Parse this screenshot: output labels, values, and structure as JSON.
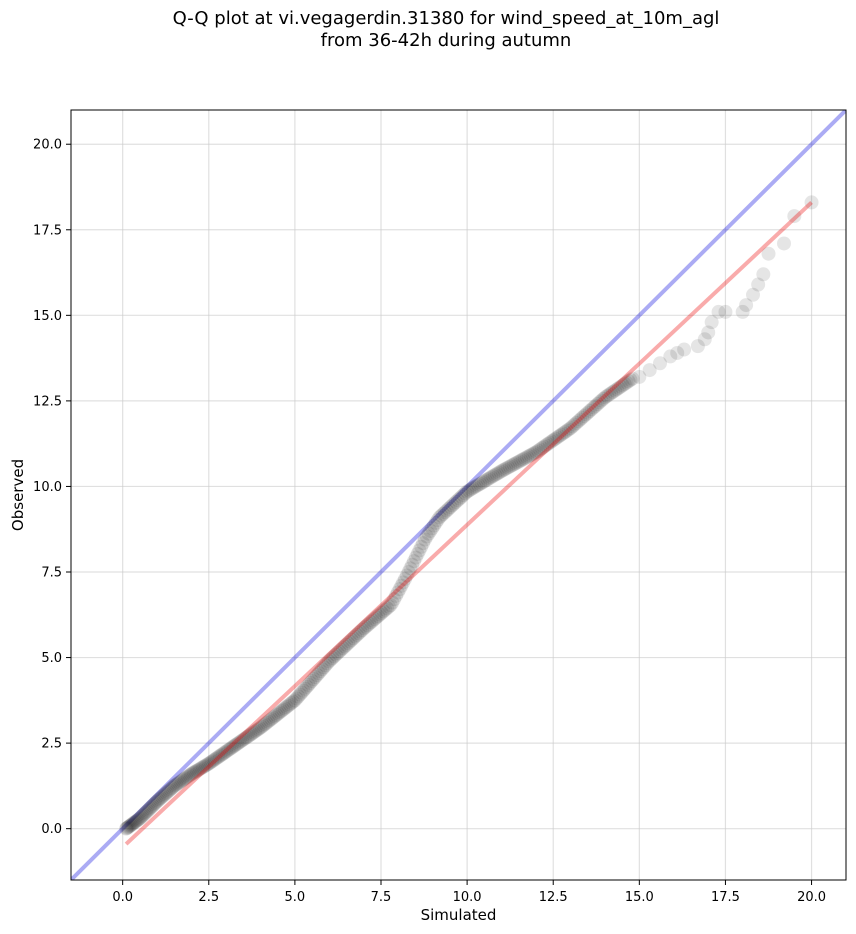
{
  "chart_data": {
    "type": "scatter",
    "title_line1": "Q-Q plot at vi.vegagerdin.31380 for wind_speed_at_10m_agl",
    "title_line2": "from 36-42h during autumn",
    "xlabel": "Simulated",
    "ylabel": "Observed",
    "xlim": [
      -1.5,
      21
    ],
    "ylim": [
      -1.5,
      21
    ],
    "xticks": [
      0.0,
      2.5,
      5.0,
      7.5,
      10.0,
      12.5,
      15.0,
      17.5,
      20.0
    ],
    "yticks": [
      0.0,
      2.5,
      5.0,
      7.5,
      10.0,
      12.5,
      15.0,
      17.5,
      20.0
    ],
    "xtick_labels": [
      "0.0",
      "2.5",
      "5.0",
      "7.5",
      "10.0",
      "12.5",
      "15.0",
      "17.5",
      "20.0"
    ],
    "ytick_labels": [
      "0.0",
      "2.5",
      "5.0",
      "7.5",
      "10.0",
      "12.5",
      "15.0",
      "17.5",
      "20.0"
    ],
    "grid": true,
    "colors": {
      "points": "#000000",
      "identity_line": "#0000dd",
      "fit_line": "#ee0000",
      "grid": "#cccccc"
    },
    "identity_line": {
      "x": [
        -1.5,
        21
      ],
      "y": [
        -1.5,
        21
      ]
    },
    "fit_line": {
      "x": [
        0.1,
        20.0
      ],
      "y": [
        -0.45,
        18.3
      ]
    },
    "quantile_knots": {
      "x": [
        0.1,
        0.5,
        1.0,
        1.5,
        2.0,
        2.5,
        3.0,
        4.0,
        5.0,
        6.0,
        7.0,
        7.8,
        8.2,
        8.5,
        8.8,
        9.2,
        10.0,
        11.0,
        12.0,
        13.0,
        14.0,
        14.8
      ],
      "y": [
        0.0,
        0.3,
        0.8,
        1.25,
        1.6,
        1.9,
        2.25,
        2.95,
        3.75,
        4.9,
        5.85,
        6.55,
        7.3,
        7.9,
        8.5,
        9.1,
        9.85,
        10.45,
        11.0,
        11.7,
        12.6,
        13.15
      ],
      "n": 300
    },
    "tail_points": {
      "x": [
        15.0,
        15.3,
        15.6,
        15.9,
        16.1,
        16.3,
        16.7,
        16.9,
        17.0,
        17.1,
        17.3,
        17.5,
        18.0,
        18.1,
        18.3,
        18.45,
        18.6,
        18.75,
        19.2,
        19.5,
        20.0
      ],
      "y": [
        13.2,
        13.4,
        13.6,
        13.8,
        13.9,
        14.0,
        14.1,
        14.3,
        14.5,
        14.8,
        15.1,
        15.1,
        15.1,
        15.3,
        15.6,
        15.9,
        16.2,
        16.8,
        17.1,
        17.9,
        18.3
      ]
    }
  }
}
